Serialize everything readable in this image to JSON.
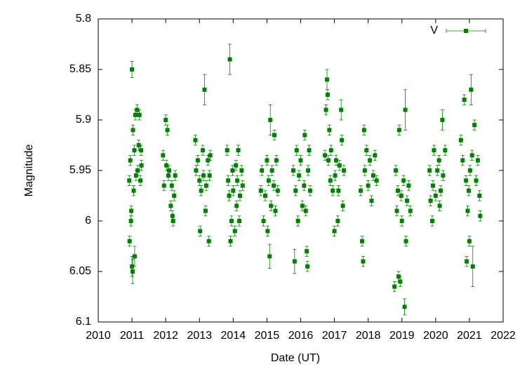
{
  "chart_data": {
    "type": "scatter",
    "xlabel": "Date (UT)",
    "ylabel": "Magnitude",
    "xlim": [
      2010,
      2022
    ],
    "xticks": [
      2010,
      2011,
      2012,
      2013,
      2014,
      2015,
      2016,
      2017,
      2018,
      2019,
      2020,
      2021,
      2022
    ],
    "ylim": [
      5.8,
      6.1
    ],
    "yticks": [
      5.8,
      5.85,
      5.9,
      5.95,
      6,
      6.05,
      6.1
    ],
    "y_inverted": true,
    "legend": "top right",
    "series": [
      {
        "name": "V",
        "color": "#008000",
        "x": [
          2010.92,
          2010.93,
          2010.95,
          2010.97,
          2010.98,
          2011.0,
          2011.0,
          2011.02,
          2011.03,
          2011.05,
          2011.07,
          2011.08,
          2011.1,
          2011.12,
          2011.15,
          2011.17,
          2011.2,
          2011.22,
          2011.25,
          2011.27,
          2011.28,
          2011.92,
          2011.95,
          2012.0,
          2012.02,
          2012.05,
          2012.08,
          2012.1,
          2012.15,
          2012.18,
          2012.2,
          2012.22,
          2012.25,
          2012.28,
          2012.88,
          2012.9,
          2012.95,
          2013.0,
          2013.02,
          2013.05,
          2013.1,
          2013.12,
          2013.15,
          2013.18,
          2013.2,
          2013.25,
          2013.28,
          2013.3,
          2013.32,
          2013.82,
          2013.85,
          2013.88,
          2013.9,
          2013.92,
          2013.95,
          2013.98,
          2014.0,
          2014.05,
          2014.08,
          2014.1,
          2014.12,
          2014.15,
          2014.18,
          2014.2,
          2014.25,
          2014.28,
          2014.82,
          2014.85,
          2014.9,
          2014.95,
          2015.0,
          2015.02,
          2015.05,
          2015.08,
          2015.1,
          2015.12,
          2015.15,
          2015.2,
          2015.22,
          2015.25,
          2015.28,
          2015.32,
          2015.78,
          2015.82,
          2015.85,
          2015.88,
          2015.92,
          2015.95,
          2016.0,
          2016.05,
          2016.1,
          2016.12,
          2016.15,
          2016.18,
          2016.2,
          2016.22,
          2016.25,
          2016.28,
          2016.72,
          2016.75,
          2016.78,
          2016.8,
          2016.82,
          2016.85,
          2016.88,
          2016.9,
          2016.95,
          2017.0,
          2017.02,
          2017.05,
          2017.1,
          2017.12,
          2017.15,
          2017.2,
          2017.22,
          2017.25,
          2017.28,
          2017.78,
          2017.82,
          2017.85,
          2017.88,
          2017.9,
          2017.95,
          2018.0,
          2018.05,
          2018.1,
          2018.15,
          2018.2,
          2018.25,
          2018.78,
          2018.82,
          2018.85,
          2018.88,
          2018.9,
          2018.92,
          2018.95,
          2018.98,
          2019.0,
          2019.05,
          2019.08,
          2019.1,
          2019.12,
          2019.15,
          2019.2,
          2019.25,
          2019.82,
          2019.85,
          2019.9,
          2019.92,
          2019.95,
          2020.0,
          2020.05,
          2020.1,
          2020.12,
          2020.15,
          2020.2,
          2020.22,
          2020.28,
          2020.75,
          2020.8,
          2020.85,
          2020.9,
          2020.92,
          2020.95,
          2020.98,
          2021.0,
          2021.02,
          2021.05,
          2021.08,
          2021.1,
          2021.15,
          2021.2,
          2021.25,
          2021.3,
          2021.32
        ],
        "values": [
          5.96,
          6.02,
          5.94,
          6.0,
          5.99,
          6.045,
          5.85,
          6.05,
          5.91,
          5.97,
          5.93,
          6.035,
          5.895,
          5.955,
          5.89,
          5.95,
          5.925,
          5.895,
          5.96,
          5.93,
          5.945,
          5.935,
          5.965,
          5.9,
          5.945,
          5.91,
          5.955,
          5.95,
          5.985,
          5.965,
          5.995,
          6.0,
          5.975,
          5.955,
          5.92,
          5.95,
          5.94,
          5.96,
          6.01,
          5.97,
          5.93,
          5.955,
          5.87,
          5.99,
          5.965,
          5.94,
          6.02,
          5.955,
          5.935,
          5.93,
          5.96,
          5.975,
          5.84,
          6.02,
          6.0,
          5.95,
          5.97,
          6.01,
          5.945,
          5.985,
          5.96,
          5.93,
          6.0,
          5.975,
          5.95,
          5.965,
          5.97,
          5.95,
          6.0,
          5.975,
          5.94,
          6.01,
          5.96,
          6.035,
          5.9,
          5.985,
          5.95,
          5.965,
          5.915,
          5.99,
          5.94,
          5.97,
          5.95,
          6.04,
          5.97,
          5.93,
          6.0,
          5.955,
          5.94,
          5.985,
          5.965,
          5.915,
          5.99,
          6.03,
          6.045,
          5.95,
          5.93,
          5.97,
          5.935,
          5.89,
          5.86,
          5.875,
          5.94,
          5.91,
          5.96,
          5.93,
          5.97,
          6.01,
          5.955,
          5.94,
          6.0,
          5.97,
          5.945,
          5.89,
          5.92,
          5.985,
          5.95,
          5.97,
          6.02,
          6.04,
          5.91,
          5.95,
          5.93,
          5.965,
          5.94,
          5.98,
          5.955,
          5.935,
          5.96,
          6.065,
          5.95,
          5.99,
          5.97,
          6.055,
          5.91,
          6.06,
          5.975,
          6.0,
          5.96,
          6.085,
          5.89,
          6.02,
          5.98,
          5.965,
          5.99,
          5.95,
          5.98,
          6.0,
          5.965,
          5.93,
          5.975,
          5.95,
          5.94,
          5.985,
          5.97,
          5.9,
          5.955,
          5.93,
          5.92,
          5.94,
          5.88,
          5.96,
          6.04,
          5.99,
          5.97,
          6.02,
          5.95,
          5.87,
          5.935,
          6.045,
          5.905,
          5.96,
          5.94,
          5.975,
          5.995
        ],
        "errors": [
          0.005,
          0.005,
          0.005,
          0.005,
          0.005,
          0.01,
          0.008,
          0.012,
          0.005,
          0.005,
          0.005,
          0.01,
          0.005,
          0.005,
          0.005,
          0.005,
          0.005,
          0.005,
          0.005,
          0.005,
          0.005,
          0.005,
          0.005,
          0.005,
          0.005,
          0.005,
          0.005,
          0.005,
          0.005,
          0.005,
          0.005,
          0.005,
          0.005,
          0.005,
          0.005,
          0.005,
          0.005,
          0.005,
          0.005,
          0.005,
          0.005,
          0.005,
          0.015,
          0.005,
          0.005,
          0.005,
          0.005,
          0.005,
          0.005,
          0.005,
          0.005,
          0.005,
          0.015,
          0.005,
          0.005,
          0.005,
          0.005,
          0.005,
          0.005,
          0.005,
          0.005,
          0.005,
          0.005,
          0.005,
          0.005,
          0.005,
          0.005,
          0.005,
          0.005,
          0.005,
          0.005,
          0.005,
          0.005,
          0.012,
          0.015,
          0.005,
          0.005,
          0.005,
          0.005,
          0.005,
          0.005,
          0.005,
          0.005,
          0.012,
          0.005,
          0.005,
          0.005,
          0.005,
          0.005,
          0.005,
          0.005,
          0.005,
          0.005,
          0.005,
          0.005,
          0.005,
          0.005,
          0.005,
          0.005,
          0.005,
          0.01,
          0.005,
          0.005,
          0.005,
          0.005,
          0.005,
          0.005,
          0.005,
          0.005,
          0.005,
          0.005,
          0.005,
          0.005,
          0.01,
          0.005,
          0.005,
          0.005,
          0.005,
          0.005,
          0.005,
          0.005,
          0.005,
          0.005,
          0.005,
          0.005,
          0.005,
          0.005,
          0.005,
          0.005,
          0.005,
          0.005,
          0.005,
          0.005,
          0.005,
          0.005,
          0.005,
          0.005,
          0.005,
          0.005,
          0.008,
          0.02,
          0.005,
          0.005,
          0.005,
          0.005,
          0.005,
          0.005,
          0.005,
          0.005,
          0.005,
          0.005,
          0.005,
          0.005,
          0.005,
          0.005,
          0.01,
          0.005,
          0.005,
          0.005,
          0.005,
          0.005,
          0.005,
          0.005,
          0.005,
          0.005,
          0.005,
          0.005,
          0.015,
          0.005,
          0.02,
          0.005,
          0.005,
          0.005,
          0.005,
          0.005
        ]
      }
    ]
  }
}
